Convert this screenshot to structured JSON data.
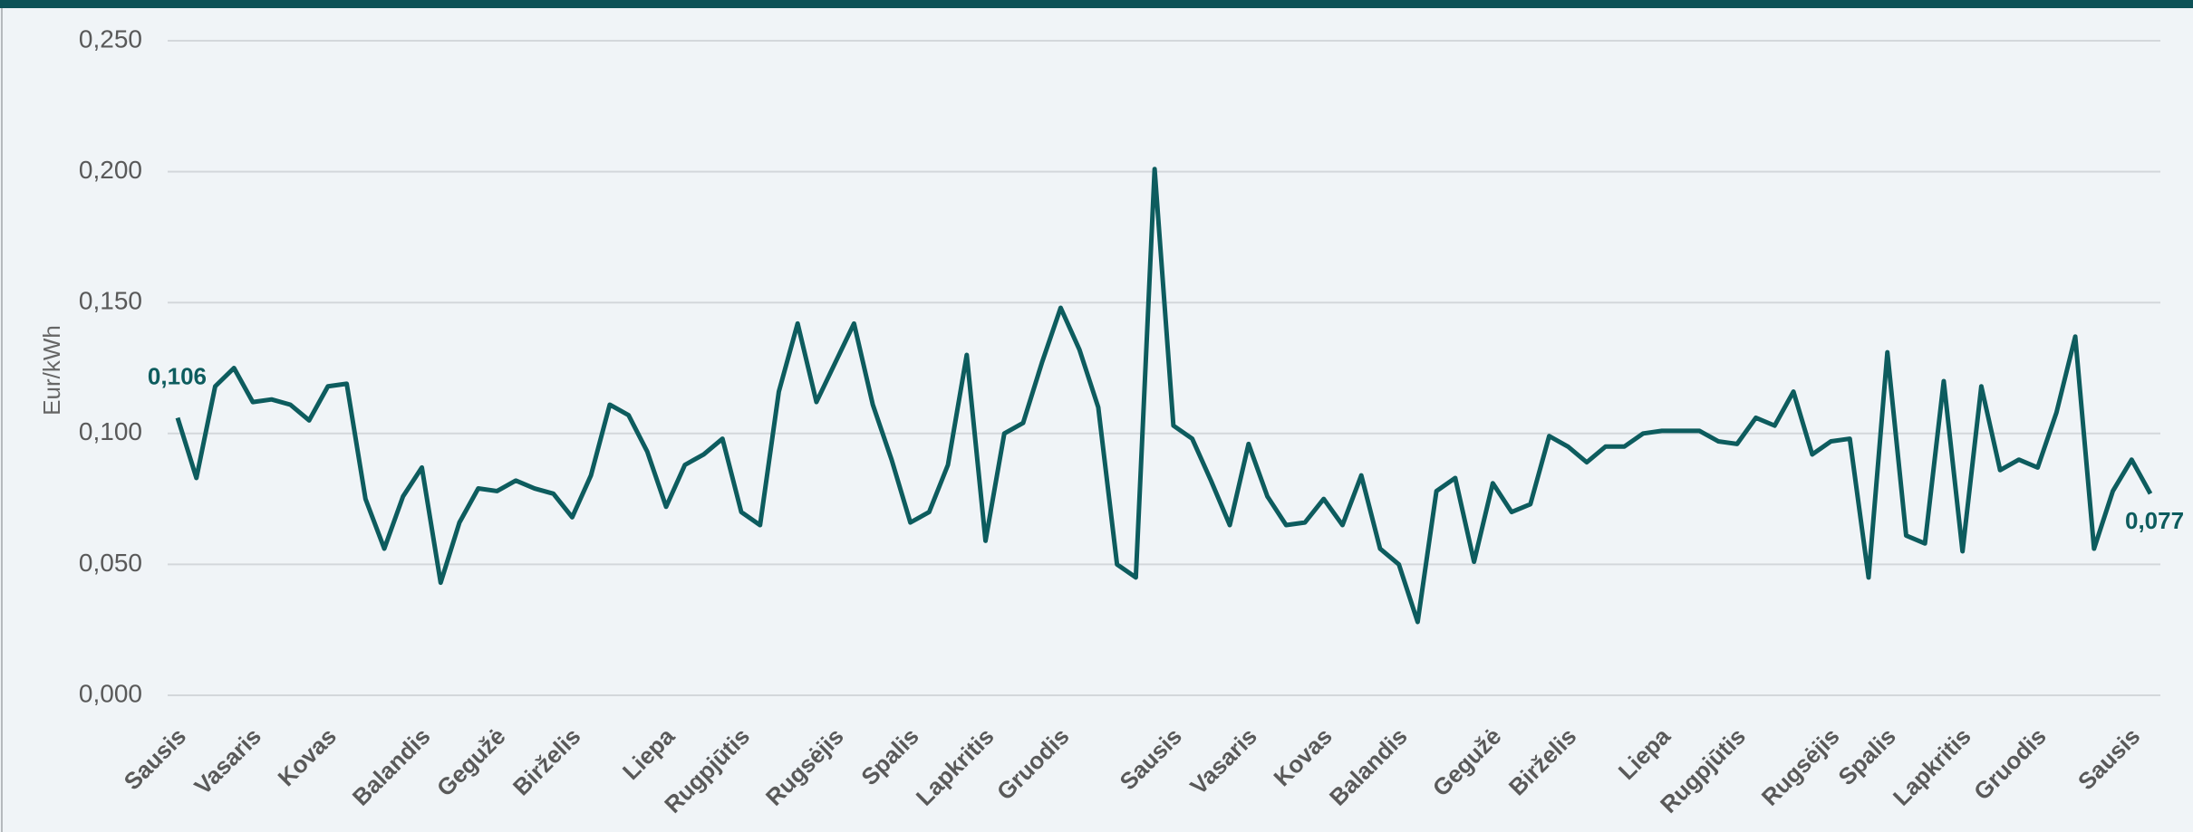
{
  "chart_data": {
    "type": "line",
    "y_label": "Eur/kWh",
    "categories": [
      "Sausis",
      null,
      null,
      null,
      "Vasaris",
      null,
      null,
      null,
      "Kovas",
      null,
      null,
      null,
      null,
      "Balandis",
      null,
      null,
      null,
      "Gegužė",
      null,
      null,
      null,
      "Birželis",
      null,
      null,
      null,
      null,
      "Liepa",
      null,
      null,
      null,
      "Rugpjūtis",
      null,
      null,
      null,
      null,
      "Rugsėjis",
      null,
      null,
      null,
      "Spalis",
      null,
      null,
      null,
      "Lapkritis",
      null,
      null,
      null,
      "Gruodis",
      null,
      null,
      null,
      null,
      null,
      "Sausis",
      null,
      null,
      null,
      "Vasaris",
      null,
      null,
      null,
      "Kovas",
      null,
      null,
      null,
      "Balandis",
      null,
      null,
      null,
      null,
      "Gegužė",
      null,
      null,
      null,
      "Birželis",
      null,
      null,
      null,
      null,
      "Liepa",
      null,
      null,
      null,
      "Rugpjūtis",
      null,
      null,
      null,
      null,
      "Rugsėjis",
      null,
      null,
      "Spalis",
      null,
      null,
      null,
      "Lapkritis",
      null,
      null,
      null,
      "Gruodis",
      null,
      null,
      null,
      null,
      "Sausis",
      null
    ],
    "series": [
      {
        "name": "Eur/kWh",
        "color": "#0d5c5e",
        "values": [
          0.106,
          0.083,
          0.118,
          0.125,
          0.112,
          0.113,
          0.111,
          0.105,
          0.118,
          0.119,
          0.075,
          0.056,
          0.076,
          0.087,
          0.043,
          0.066,
          0.079,
          0.078,
          0.082,
          0.079,
          0.077,
          0.068,
          0.084,
          0.111,
          0.107,
          0.093,
          0.072,
          0.088,
          0.092,
          0.098,
          0.07,
          0.065,
          0.116,
          0.142,
          0.112,
          0.127,
          0.142,
          0.111,
          0.09,
          0.066,
          0.07,
          0.088,
          0.13,
          0.059,
          0.1,
          0.104,
          0.127,
          0.148,
          0.132,
          0.11,
          0.05,
          0.045,
          0.201,
          0.103,
          0.098,
          0.082,
          0.065,
          0.096,
          0.076,
          0.065,
          0.066,
          0.075,
          0.065,
          0.084,
          0.056,
          0.05,
          0.028,
          0.078,
          0.083,
          0.051,
          0.081,
          0.07,
          0.073,
          0.099,
          0.095,
          0.089,
          0.095,
          0.095,
          0.1,
          0.101,
          0.101,
          0.101,
          0.097,
          0.096,
          0.106,
          0.103,
          0.116,
          0.092,
          0.097,
          0.098,
          0.045,
          0.131,
          0.061,
          0.058,
          0.12,
          0.055,
          0.118,
          0.086,
          0.09,
          0.087,
          0.108,
          0.137,
          0.056,
          0.078,
          0.09,
          0.077
        ],
        "value_labels": [
          "0,106",
          null,
          null,
          null,
          null,
          null,
          null,
          null,
          null,
          null,
          null,
          null,
          null,
          null,
          null,
          null,
          null,
          null,
          null,
          null,
          null,
          null,
          null,
          null,
          null,
          null,
          null,
          null,
          null,
          null,
          null,
          null,
          null,
          null,
          null,
          null,
          null,
          null,
          null,
          null,
          null,
          null,
          null,
          null,
          null,
          null,
          null,
          null,
          null,
          null,
          null,
          null,
          null,
          null,
          null,
          null,
          null,
          null,
          null,
          null,
          null,
          null,
          null,
          null,
          null,
          null,
          null,
          null,
          null,
          null,
          null,
          null,
          null,
          null,
          null,
          null,
          null,
          null,
          null,
          null,
          null,
          null,
          null,
          null,
          null,
          null,
          null,
          null,
          null,
          null,
          null,
          null,
          null,
          null,
          null,
          null,
          null,
          null,
          null,
          null,
          null,
          null,
          null,
          null,
          null,
          "0,077"
        ]
      }
    ],
    "ylim": [
      0,
      0.25
    ],
    "yticks": [
      {
        "value": 0,
        "label": "0,000"
      },
      {
        "value": 0.05,
        "label": "0,050"
      },
      {
        "value": 0.1,
        "label": "0,100"
      },
      {
        "value": 0.15,
        "label": "0,150"
      },
      {
        "value": 0.2,
        "label": "0,200"
      },
      {
        "value": 0.25,
        "label": "0,250"
      }
    ],
    "grid": true
  }
}
